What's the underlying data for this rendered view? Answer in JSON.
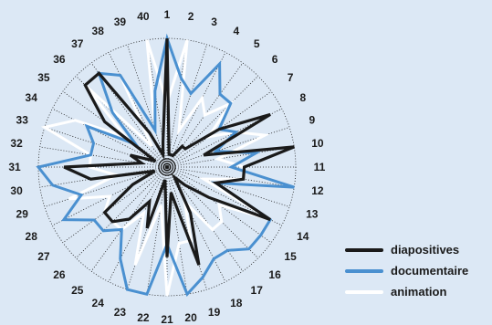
{
  "chart_data": {
    "type": "radar",
    "categories": [
      "1",
      "2",
      "3",
      "4",
      "5",
      "6",
      "7",
      "8",
      "9",
      "10",
      "11",
      "12",
      "13",
      "14",
      "15",
      "16",
      "17",
      "18",
      "19",
      "20",
      "21",
      "22",
      "23",
      "24",
      "25",
      "26",
      "27",
      "28",
      "29",
      "30",
      "31",
      "32",
      "33",
      "34",
      "35",
      "36",
      "37",
      "38",
      "39",
      "40"
    ],
    "rmax": 10,
    "grid": "dotted spokes and rings",
    "legend_position": "bottom-right",
    "series": [
      {
        "name": "diapositives",
        "color": "#1a1a1a",
        "values": [
          10,
          1,
          1,
          1,
          2,
          2,
          5,
          9,
          3,
          10,
          6,
          6,
          4,
          9,
          4,
          2,
          1,
          4,
          8,
          2,
          7,
          1,
          5,
          3,
          5,
          6,
          6,
          3,
          1,
          6,
          8,
          2,
          3,
          1,
          6,
          9,
          9,
          3,
          1,
          2
        ]
      },
      {
        "name": "documentaire",
        "color": "#4a90d0",
        "values": [
          10,
          7,
          6,
          9,
          7,
          7,
          5,
          6,
          4,
          7,
          5,
          10,
          4,
          9,
          9,
          9,
          8,
          8,
          9,
          10,
          6,
          10,
          10,
          8,
          6,
          7,
          7,
          9,
          7,
          9,
          10,
          6,
          6,
          7,
          3,
          6,
          9,
          8,
          3,
          6
        ]
      },
      {
        "name": "animation",
        "color": "#ffffff",
        "values": [
          5,
          10,
          3,
          6,
          5,
          7,
          4,
          6,
          8,
          4,
          6,
          6,
          3,
          9,
          5,
          6,
          6,
          3,
          6,
          6,
          10,
          3,
          8,
          4,
          6,
          6,
          6,
          5,
          8,
          4,
          6,
          6,
          10,
          8,
          4,
          9,
          2,
          8,
          3,
          10
        ]
      }
    ]
  }
}
